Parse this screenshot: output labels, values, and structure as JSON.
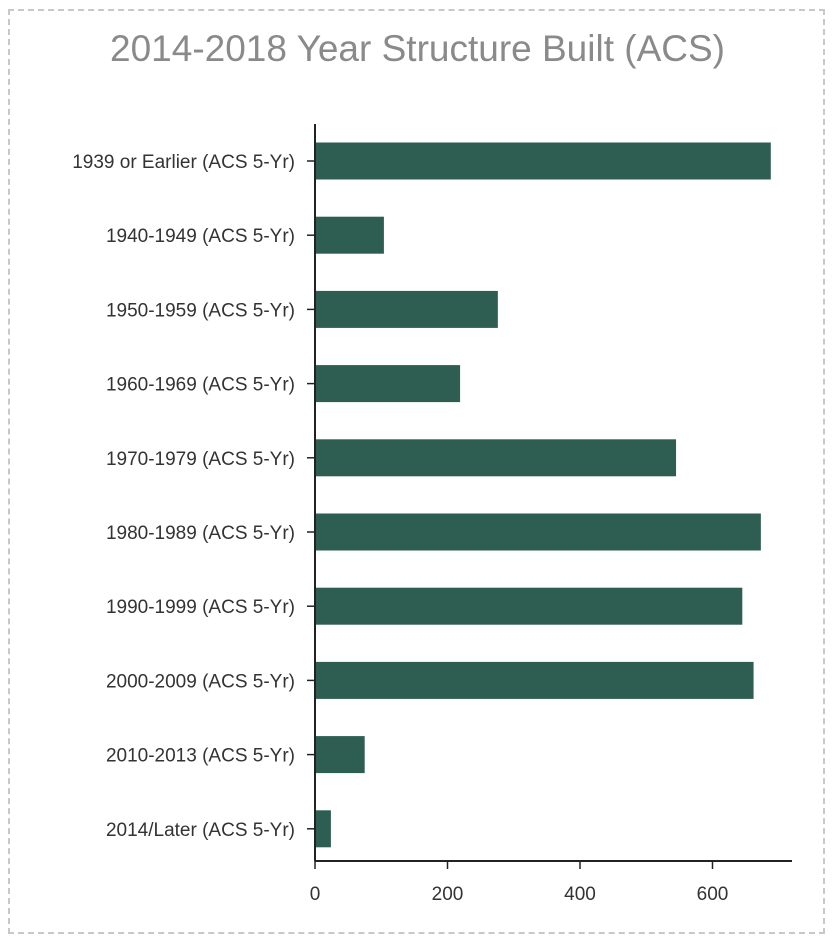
{
  "chart_data": {
    "type": "bar",
    "orientation": "horizontal",
    "title": "2014-2018 Year Structure Built (ACS)",
    "categories": [
      "1939 or Earlier (ACS 5-Yr)",
      "1940-1949 (ACS 5-Yr)",
      "1950-1959 (ACS 5-Yr)",
      "1960-1969 (ACS 5-Yr)",
      "1970-1979 (ACS 5-Yr)",
      "1980-1989 (ACS 5-Yr)",
      "1990-1999 (ACS 5-Yr)",
      "2000-2009 (ACS 5-Yr)",
      "2010-2013 (ACS 5-Yr)",
      "2014/Later (ACS 5-Yr)"
    ],
    "values": [
      688,
      104,
      276,
      219,
      545,
      673,
      645,
      662,
      75,
      24
    ],
    "xticks": [
      0,
      200,
      400,
      600
    ],
    "xlim": [
      0,
      720
    ],
    "grid": false,
    "bar_color": "#2e5e52",
    "axis_color": "#222222"
  }
}
